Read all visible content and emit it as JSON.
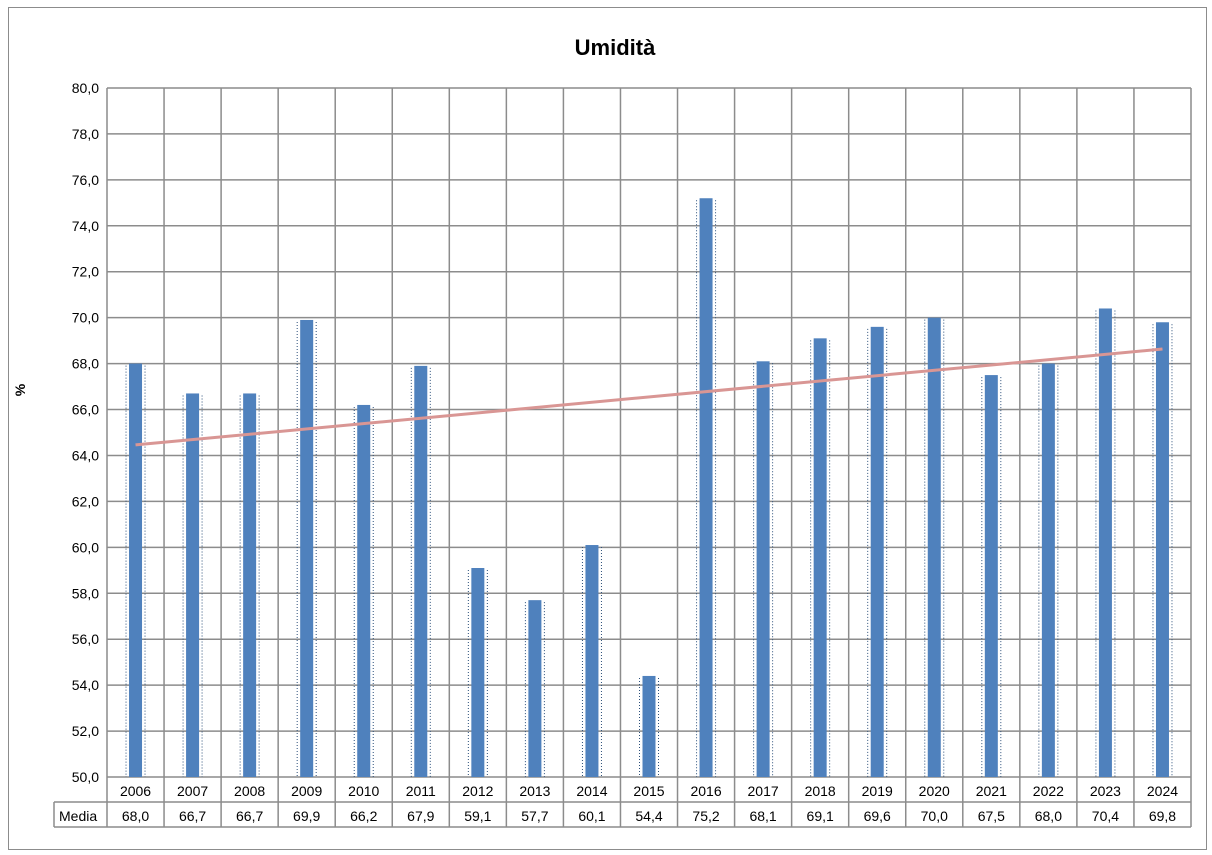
{
  "chart_data": {
    "type": "bar",
    "title": "Umidità",
    "ylabel": "%",
    "ylim": [
      50,
      80
    ],
    "ytick_step": 2,
    "ytick_labels": [
      "50,0",
      "52,0",
      "54,0",
      "56,0",
      "58,0",
      "60,0",
      "62,0",
      "64,0",
      "66,0",
      "68,0",
      "70,0",
      "72,0",
      "74,0",
      "76,0",
      "78,0",
      "80,0"
    ],
    "grid": true,
    "categories": [
      "2006",
      "2007",
      "2008",
      "2009",
      "2010",
      "2011",
      "2012",
      "2013",
      "2014",
      "2015",
      "2016",
      "2017",
      "2018",
      "2019",
      "2020",
      "2021",
      "2022",
      "2023",
      "2024"
    ],
    "series": [
      {
        "name": "Media",
        "color": "#4f81bd",
        "values": [
          68.0,
          66.7,
          66.7,
          69.9,
          66.2,
          67.9,
          59.1,
          57.7,
          60.1,
          54.4,
          75.2,
          68.1,
          69.1,
          69.6,
          70.0,
          67.5,
          68.0,
          70.4,
          69.8
        ],
        "value_labels": [
          "68,0",
          "66,7",
          "66,7",
          "69,9",
          "66,2",
          "67,9",
          "59,1",
          "57,7",
          "60,1",
          "54,4",
          "75,2",
          "68,1",
          "69,1",
          "69,6",
          "70,0",
          "67,5",
          "68,0",
          "70,4",
          "69,8"
        ]
      }
    ],
    "trendline": {
      "type": "linear",
      "color": "#d99694"
    },
    "data_table": {
      "row_label": "Media"
    }
  }
}
